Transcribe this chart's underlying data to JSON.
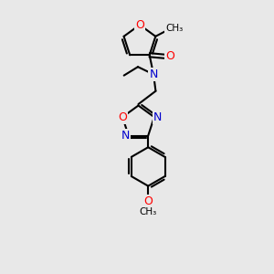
{
  "bg_color": "#e8e8e8",
  "bond_color": "#000000",
  "bond_width": 1.5,
  "atom_colors": {
    "O": "#ff0000",
    "N": "#0000cd",
    "C": "#000000"
  }
}
